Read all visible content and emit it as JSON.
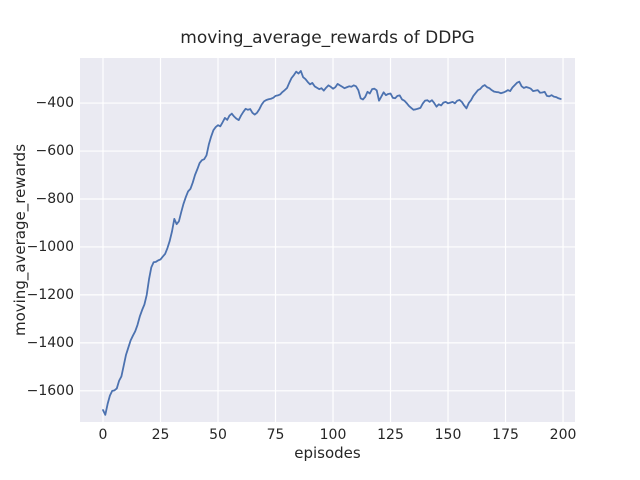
{
  "chart_data": {
    "type": "line",
    "title": "moving_average_rewards of DDPG",
    "xlabel": "episodes",
    "ylabel": "moving_average_rewards",
    "xlim": [
      -10,
      205.2
    ],
    "ylim": [
      -1730,
      -212
    ],
    "xticks": [
      0,
      25,
      50,
      75,
      100,
      125,
      150,
      175,
      200
    ],
    "yticks": [
      -400,
      -600,
      -800,
      -1000,
      -1200,
      -1400,
      -1600
    ],
    "grid": true,
    "legend_position": "none",
    "style": {
      "plot_background": "#eaeaf2",
      "grid_color": "#ffffff",
      "line_color": "#4c72b0",
      "text_color": "#262626",
      "figure_background": "#ffffff"
    },
    "series": [
      {
        "name": "moving_average_rewards",
        "x_start": 0,
        "x_step": 1,
        "values": [
          -1680,
          -1700,
          -1655,
          -1620,
          -1600,
          -1598,
          -1590,
          -1558,
          -1540,
          -1495,
          -1450,
          -1420,
          -1390,
          -1370,
          -1352,
          -1325,
          -1290,
          -1263,
          -1240,
          -1200,
          -1135,
          -1085,
          -1064,
          -1062,
          -1056,
          -1052,
          -1040,
          -1029,
          -1005,
          -975,
          -935,
          -883,
          -905,
          -893,
          -855,
          -820,
          -792,
          -768,
          -758,
          -732,
          -700,
          -676,
          -650,
          -638,
          -634,
          -618,
          -573,
          -540,
          -513,
          -500,
          -492,
          -497,
          -480,
          -462,
          -470,
          -452,
          -444,
          -456,
          -465,
          -471,
          -452,
          -437,
          -424,
          -428,
          -425,
          -441,
          -448,
          -440,
          -425,
          -406,
          -393,
          -387,
          -384,
          -382,
          -378,
          -370,
          -368,
          -364,
          -354,
          -346,
          -337,
          -315,
          -295,
          -283,
          -269,
          -277,
          -266,
          -292,
          -300,
          -312,
          -322,
          -316,
          -330,
          -336,
          -342,
          -338,
          -348,
          -336,
          -326,
          -332,
          -340,
          -334,
          -320,
          -326,
          -332,
          -338,
          -334,
          -330,
          -332,
          -326,
          -330,
          -346,
          -380,
          -385,
          -374,
          -353,
          -360,
          -342,
          -340,
          -347,
          -390,
          -373,
          -355,
          -367,
          -362,
          -360,
          -378,
          -380,
          -370,
          -368,
          -385,
          -390,
          -400,
          -412,
          -420,
          -428,
          -426,
          -423,
          -420,
          -402,
          -390,
          -388,
          -395,
          -388,
          -400,
          -415,
          -405,
          -410,
          -398,
          -395,
          -401,
          -398,
          -395,
          -401,
          -390,
          -387,
          -395,
          -410,
          -422,
          -400,
          -388,
          -370,
          -358,
          -346,
          -341,
          -330,
          -325,
          -334,
          -338,
          -346,
          -352,
          -354,
          -355,
          -359,
          -356,
          -352,
          -346,
          -350,
          -335,
          -325,
          -315,
          -311,
          -330,
          -337,
          -333,
          -336,
          -340,
          -350,
          -348,
          -346,
          -357,
          -356,
          -353,
          -370,
          -372,
          -367,
          -373,
          -375,
          -380,
          -383
        ]
      }
    ]
  }
}
